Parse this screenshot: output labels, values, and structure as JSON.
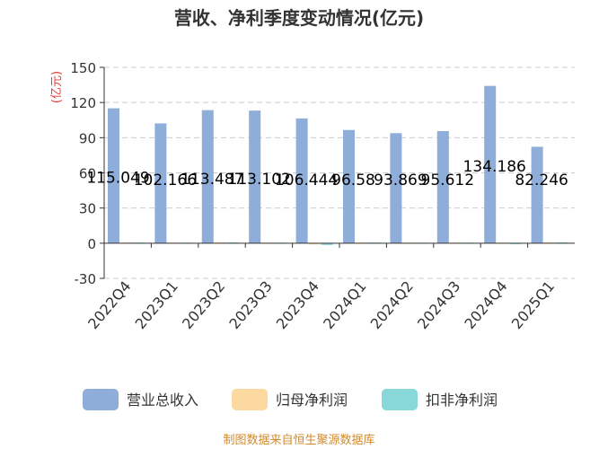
{
  "chart_data": {
    "type": "bar",
    "title": "营收、净利季度变动情况(亿元)",
    "ylabel": "(亿元)",
    "ylim": [
      -30,
      150
    ],
    "yticks": [
      -30,
      0,
      30,
      60,
      90,
      120,
      150
    ],
    "grid": true,
    "legend_position": "bottom",
    "categories": [
      "2022Q4",
      "2023Q1",
      "2023Q2",
      "2023Q3",
      "2023Q4",
      "2024Q1",
      "2024Q2",
      "2024Q3",
      "2024Q4",
      "2025Q1"
    ],
    "series": [
      {
        "name": "营业总收入",
        "color": "#8EADD8",
        "values": [
          115.049,
          102.166,
          113.487,
          113.102,
          106.444,
          96.58,
          93.869,
          95.612,
          134.186,
          82.246
        ],
        "labels": [
          "115.049",
          "102.166",
          "113.487",
          "113.102",
          "106.444",
          "96.58",
          "93.869",
          "95.612",
          "134.186",
          "82.246"
        ]
      },
      {
        "name": "归母净利润",
        "color": "#FBD9A0",
        "values": [
          0.6,
          0.5,
          0.8,
          0.5,
          -1.0,
          0.6,
          0.4,
          0.5,
          0.3,
          0.8
        ]
      },
      {
        "name": "扣非净利润",
        "color": "#88D7D9",
        "values": [
          0.5,
          0.4,
          0.7,
          0.4,
          -1.5,
          0.5,
          0.3,
          0.4,
          -0.5,
          0.7
        ]
      }
    ]
  },
  "footer": {
    "source": "制图数据来自恒生聚源数据库"
  },
  "colors": {
    "axis": "#333333",
    "grid": "#cccccc",
    "unit": "#e53935",
    "footer": "#d08a2e"
  }
}
